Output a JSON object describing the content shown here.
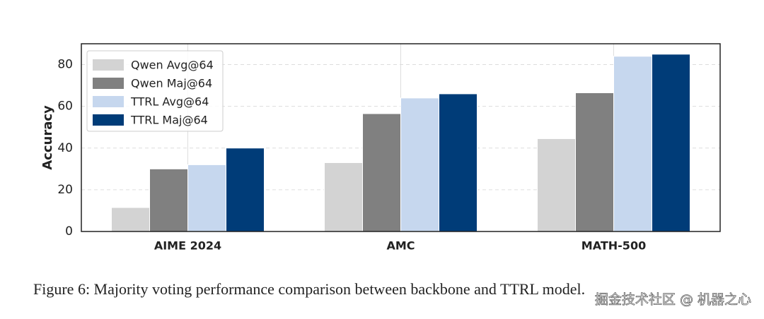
{
  "chart_data": {
    "type": "bar",
    "ylabel": "Accuracy",
    "categories": [
      "AIME 2024",
      "AMC",
      "MATH-500"
    ],
    "series": [
      {
        "name": "Qwen Avg@64",
        "color": "#d3d3d3",
        "values": [
          11.5,
          33,
          44.5
        ]
      },
      {
        "name": "Qwen Maj@64",
        "color": "#808080",
        "values": [
          30,
          56.5,
          66.5
        ]
      },
      {
        "name": "TTRL Avg@64",
        "color": "#c6d7ee",
        "values": [
          32,
          64,
          84
        ]
      },
      {
        "name": "TTRL Maj@64",
        "color": "#003c78",
        "values": [
          40,
          66,
          85
        ]
      }
    ],
    "ylim": [
      0,
      90
    ],
    "yticks": [
      0,
      20,
      40,
      60,
      80
    ],
    "grid": true,
    "legend": "upper left",
    "caption": "Figure 6: Majority voting performance comparison between backbone and TTRL model.",
    "watermark": "掘金技术社区 @ 机器之心"
  }
}
